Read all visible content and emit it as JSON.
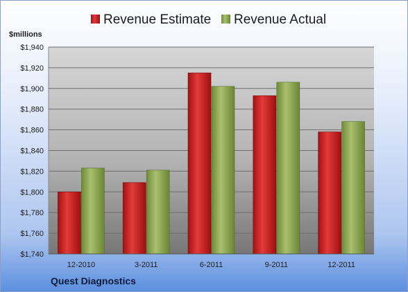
{
  "chart_data": {
    "type": "bar",
    "categories": [
      "12-2010",
      "3-2011",
      "6-2011",
      "9-2011",
      "12-2011"
    ],
    "series": [
      {
        "name": "Revenue Estimate",
        "values": [
          1800,
          1809,
          1915,
          1893,
          1858
        ],
        "color": "#c41e1e"
      },
      {
        "name": "Revenue Actual",
        "values": [
          1823,
          1821,
          1902,
          1906,
          1868
        ],
        "color": "#8fa858"
      }
    ],
    "ylabel": "$millions",
    "ylim": [
      1740,
      1940
    ],
    "yticks": [
      "$1,740",
      "$1,760",
      "$1,780",
      "$1,800",
      "$1,820",
      "$1,840",
      "$1,860",
      "$1,880",
      "$1,900",
      "$1,920",
      "$1,940"
    ],
    "grid": true,
    "legend_position": "top"
  },
  "company": "Quest Diagnostics"
}
